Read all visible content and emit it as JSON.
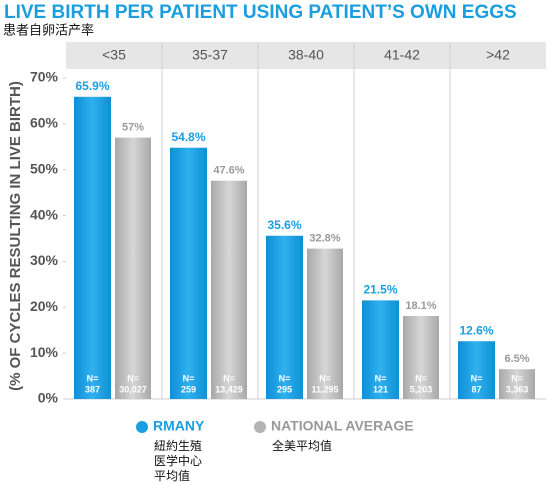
{
  "chart_data": {
    "type": "bar",
    "title": "LIVE BIRTH PER PATIENT USING PATIENT’S OWN EGGS",
    "subtitle": "患者自卵活产率",
    "y_label": "(% OF CYCLES RESULTING IN LIVE BIRTH)",
    "categories": [
      "<35",
      "35-37",
      "38-40",
      "41-42",
      ">42"
    ],
    "ylim": [
      0,
      70
    ],
    "yticks": [
      {
        "value": 0,
        "label": "0%"
      },
      {
        "value": 10,
        "label": "10%"
      },
      {
        "value": 20,
        "label": "20%"
      },
      {
        "value": 30,
        "label": "30%"
      },
      {
        "value": 40,
        "label": "40%"
      },
      {
        "value": 50,
        "label": "50%"
      },
      {
        "value": 60,
        "label": "60%"
      },
      {
        "value": 70,
        "label": "70%"
      }
    ],
    "n_prefix": "N=",
    "series": [
      {
        "name": "RMANY",
        "name_lines": [
          "紐約生殖",
          "医学中心",
          "平均值"
        ],
        "color": "#1a9ee0",
        "values": [
          65.9,
          54.8,
          35.6,
          21.5,
          12.6
        ],
        "value_labels": [
          "65.9%",
          "54.8%",
          "35.6%",
          "21.5%",
          "12.6%"
        ],
        "n_labels": [
          "387",
          "259",
          "295",
          "121",
          "87"
        ]
      },
      {
        "name": "NATIONAL AVERAGE",
        "name_lines": [
          "全美平均值"
        ],
        "color": "#b3b3b3",
        "values": [
          57,
          47.6,
          32.8,
          18.1,
          6.5
        ],
        "value_labels": [
          "57%",
          "47.6%",
          "32.8%",
          "18.1%",
          "6.5%"
        ],
        "n_labels": [
          "30,027",
          "13,429",
          "11,295",
          "5,203",
          "3,363"
        ]
      }
    ]
  }
}
